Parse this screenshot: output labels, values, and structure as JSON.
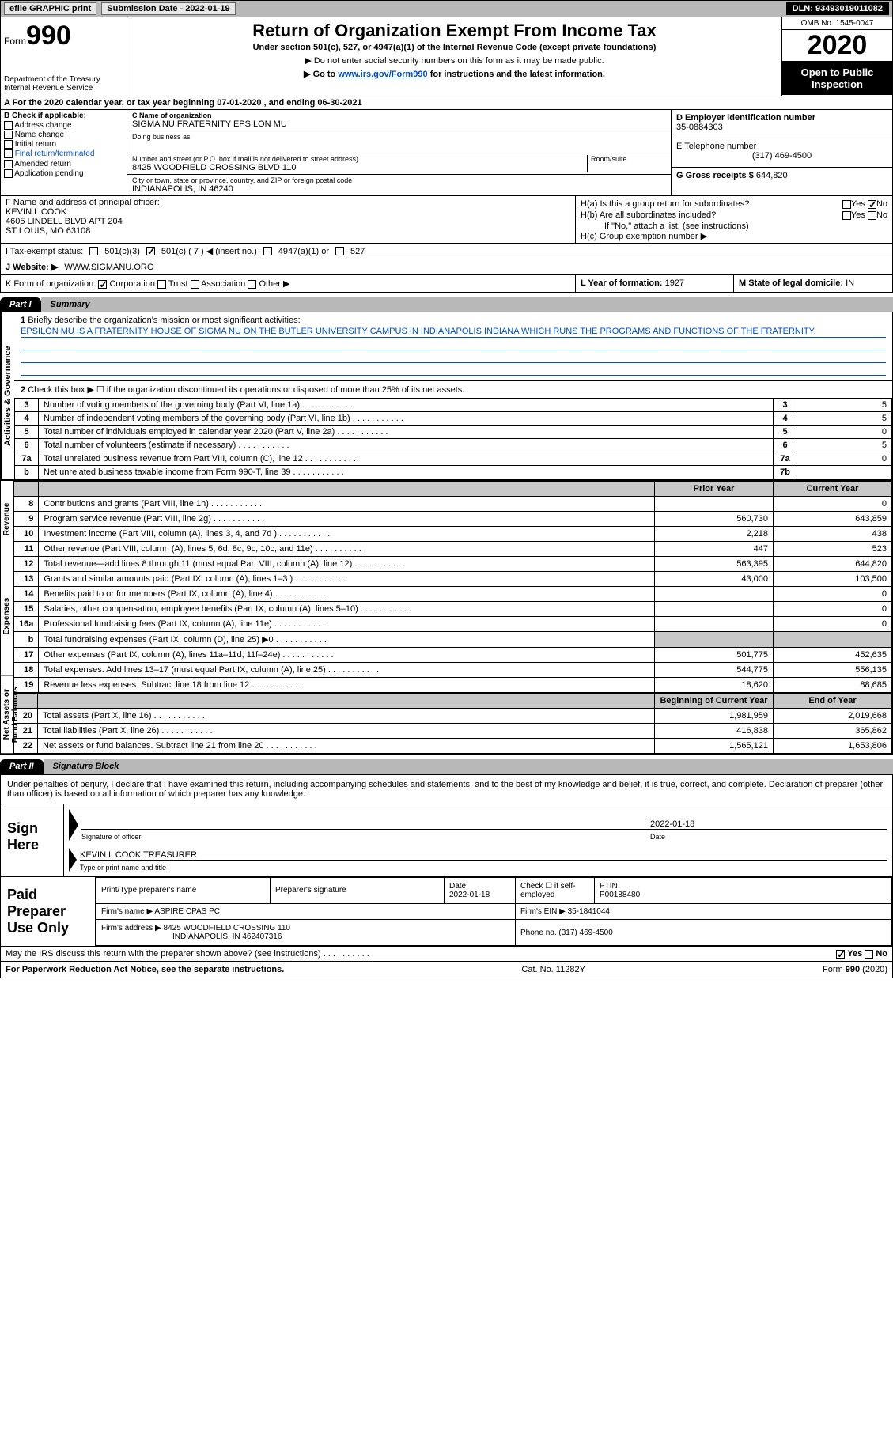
{
  "topbar": {
    "efile": "efile GRAPHIC print",
    "submission_label": "Submission Date - 2022-01-19",
    "dln": "DLN: 93493019011082"
  },
  "header": {
    "form_word": "Form",
    "form_num": "990",
    "title": "Return of Organization Exempt From Income Tax",
    "subtitle": "Under section 501(c), 527, or 4947(a)(1) of the Internal Revenue Code (except private foundations)",
    "arrow1": "▶ Do not enter social security numbers on this form as it may be made public.",
    "arrow2_pre": "▶ Go to ",
    "arrow2_link": "www.irs.gov/Form990",
    "arrow2_post": " for instructions and the latest information.",
    "omb": "OMB No. 1545-0047",
    "year": "2020",
    "open": "Open to Public Inspection",
    "dept": "Department of the Treasury\nInternal Revenue Service"
  },
  "period": "A For the 2020 calendar year, or tax year beginning 07-01-2020    , and ending 06-30-2021",
  "section_b": {
    "label": "B Check if applicable:",
    "items": [
      "Address change",
      "Name change",
      "Initial return",
      "Final return/terminated",
      "Amended return",
      "Application pending"
    ]
  },
  "section_c": {
    "name_label": "C Name of organization",
    "name": "SIGMA NU FRATERNITY EPSILON MU",
    "dba_label": "Doing business as",
    "dba": "",
    "street_label": "Number and street (or P.O. box if mail is not delivered to street address)",
    "room_label": "Room/suite",
    "street": "8425 WOODFIELD CROSSING BLVD 110",
    "city_label": "City or town, state or province, country, and ZIP or foreign postal code",
    "city": "INDIANAPOLIS, IN  46240"
  },
  "section_d": {
    "label": "D Employer identification number",
    "value": "35-0884303"
  },
  "section_e": {
    "label": "E Telephone number",
    "value": "(317) 469-4500"
  },
  "section_g": {
    "label": "G Gross receipts $",
    "value": "644,820"
  },
  "section_f": {
    "label": "F  Name and address of principal officer:",
    "name": "KEVIN L COOK",
    "addr1": "4605 LINDELL BLVD APT 204",
    "addr2": "ST LOUIS, MO  63108"
  },
  "section_h": {
    "a": "H(a)  Is this a group return for subordinates?",
    "b": "H(b)  Are all subordinates included?",
    "b_note": "If \"No,\" attach a list. (see instructions)",
    "c": "H(c)  Group exemption number ▶",
    "yes": "Yes",
    "no": "No"
  },
  "line_i": {
    "label": "I   Tax-exempt status:",
    "opts": [
      "501(c)(3)",
      "501(c) ( 7 ) ◀ (insert no.)",
      "4947(a)(1) or",
      "527"
    ]
  },
  "line_j": {
    "label": "J   Website: ▶",
    "value": "WWW.SIGMANU.ORG"
  },
  "line_k": {
    "label": "K Form of organization:",
    "opts": [
      "Corporation",
      "Trust",
      "Association",
      "Other ▶"
    ]
  },
  "line_l": {
    "label": "L Year of formation:",
    "value": "1927"
  },
  "line_m": {
    "label": "M State of legal domicile:",
    "value": "IN"
  },
  "part1": {
    "tab": "Part I",
    "title": "Summary",
    "q1": "Briefly describe the organization's mission or most significant activities:",
    "mission": "EPSILON MU IS A FRATERNITY HOUSE OF SIGMA NU ON THE BUTLER UNIVERSITY CAMPUS IN INDIANAPOLIS INDIANA WHICH RUNS THE PROGRAMS AND FUNCTIONS OF THE FRATERNITY.",
    "q2": "Check this box ▶ ☐  if the organization discontinued its operations or disposed of more than 25% of its net assets.",
    "side_gov": "Activities & Governance",
    "lines": [
      {
        "n": "3",
        "t": "Number of voting members of the governing body (Part VI, line 1a)",
        "box": "3",
        "v": "5"
      },
      {
        "n": "4",
        "t": "Number of independent voting members of the governing body (Part VI, line 1b)",
        "box": "4",
        "v": "5"
      },
      {
        "n": "5",
        "t": "Total number of individuals employed in calendar year 2020 (Part V, line 2a)",
        "box": "5",
        "v": "0"
      },
      {
        "n": "6",
        "t": "Total number of volunteers (estimate if necessary)",
        "box": "6",
        "v": "5"
      },
      {
        "n": "7a",
        "t": "Total unrelated business revenue from Part VIII, column (C), line 12",
        "box": "7a",
        "v": "0"
      },
      {
        "n": "b",
        "t": "Net unrelated business taxable income from Form 990-T, line 39",
        "box": "7b",
        "v": ""
      }
    ]
  },
  "fin": {
    "py_h": "Prior Year",
    "cy_h": "Current Year",
    "boy_h": "Beginning of Current Year",
    "eoy_h": "End of Year",
    "side_rev": "Revenue",
    "side_exp": "Expenses",
    "side_net": "Net Assets or Fund Balances",
    "rows": [
      {
        "n": "8",
        "t": "Contributions and grants (Part VIII, line 1h)",
        "py": "",
        "cy": "0"
      },
      {
        "n": "9",
        "t": "Program service revenue (Part VIII, line 2g)",
        "py": "560,730",
        "cy": "643,859"
      },
      {
        "n": "10",
        "t": "Investment income (Part VIII, column (A), lines 3, 4, and 7d )",
        "py": "2,218",
        "cy": "438"
      },
      {
        "n": "11",
        "t": "Other revenue (Part VIII, column (A), lines 5, 6d, 8c, 9c, 10c, and 11e)",
        "py": "447",
        "cy": "523"
      },
      {
        "n": "12",
        "t": "Total revenue—add lines 8 through 11 (must equal Part VIII, column (A), line 12)",
        "py": "563,395",
        "cy": "644,820"
      },
      {
        "n": "13",
        "t": "Grants and similar amounts paid (Part IX, column (A), lines 1–3 )",
        "py": "43,000",
        "cy": "103,500"
      },
      {
        "n": "14",
        "t": "Benefits paid to or for members (Part IX, column (A), line 4)",
        "py": "",
        "cy": "0"
      },
      {
        "n": "15",
        "t": "Salaries, other compensation, employee benefits (Part IX, column (A), lines 5–10)",
        "py": "",
        "cy": "0"
      },
      {
        "n": "16a",
        "t": "Professional fundraising fees (Part IX, column (A), line 11e)",
        "py": "",
        "cy": "0"
      },
      {
        "n": "b",
        "t": "Total fundraising expenses (Part IX, column (D), line 25) ▶0",
        "py": "shade",
        "cy": "shade"
      },
      {
        "n": "17",
        "t": "Other expenses (Part IX, column (A), lines 11a–11d, 11f–24e)",
        "py": "501,775",
        "cy": "452,635"
      },
      {
        "n": "18",
        "t": "Total expenses. Add lines 13–17 (must equal Part IX, column (A), line 25)",
        "py": "544,775",
        "cy": "556,135"
      },
      {
        "n": "19",
        "t": "Revenue less expenses. Subtract line 18 from line 12",
        "py": "18,620",
        "cy": "88,685"
      }
    ],
    "net_rows": [
      {
        "n": "20",
        "t": "Total assets (Part X, line 16)",
        "py": "1,981,959",
        "cy": "2,019,668"
      },
      {
        "n": "21",
        "t": "Total liabilities (Part X, line 26)",
        "py": "416,838",
        "cy": "365,862"
      },
      {
        "n": "22",
        "t": "Net assets or fund balances. Subtract line 21 from line 20",
        "py": "1,565,121",
        "cy": "1,653,806"
      }
    ]
  },
  "part2": {
    "tab": "Part II",
    "title": "Signature Block",
    "decl": "Under penalties of perjury, I declare that I have examined this return, including accompanying schedules and statements, and to the best of my knowledge and belief, it is true, correct, and complete. Declaration of preparer (other than officer) is based on all information of which preparer has any knowledge."
  },
  "sign": {
    "label": "Sign Here",
    "sig_label": "Signature of officer",
    "date": "2022-01-18",
    "date_label": "Date",
    "name": "KEVIN L COOK  TREASURER",
    "name_label": "Type or print name and title"
  },
  "paid": {
    "label": "Paid Preparer Use Only",
    "h1": "Print/Type preparer's name",
    "h2": "Preparer's signature",
    "h3_l": "Date",
    "h3_v": "2022-01-18",
    "h4": "Check ☐ if self-employed",
    "h5_l": "PTIN",
    "h5_v": "P00188480",
    "firm_l": "Firm's name    ▶",
    "firm_v": "ASPIRE CPAS PC",
    "ein_l": "Firm's EIN ▶",
    "ein_v": "35-1841044",
    "addr_l": "Firm's address ▶",
    "addr_v1": "8425 WOODFIELD CROSSING 110",
    "addr_v2": "INDIANAPOLIS, IN  462407316",
    "phone_l": "Phone no.",
    "phone_v": "(317) 469-4500"
  },
  "discuss": {
    "text": "May the IRS discuss this return with the preparer shown above? (see instructions)",
    "yes": "Yes",
    "no": "No"
  },
  "footer": {
    "left": "For Paperwork Reduction Act Notice, see the separate instructions.",
    "mid": "Cat. No. 11282Y",
    "right": "Form 990 (2020)"
  }
}
